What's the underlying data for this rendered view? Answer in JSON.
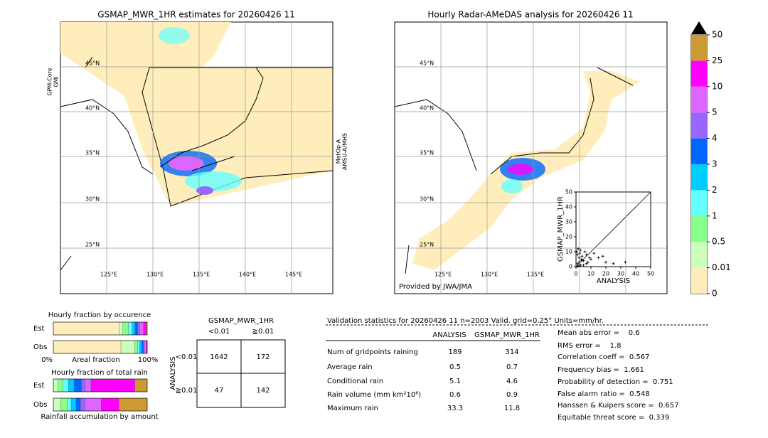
{
  "left_map": {
    "title": "GSMAP_MWR_1HR estimates for 20260426 11",
    "sensor_left": [
      "GPM-Core",
      "GMI"
    ],
    "sensor_right": [
      "MetOp-A",
      "AMSU-A/MHS"
    ],
    "lat_labels": [
      "45°N",
      "40°N",
      "35°N",
      "30°N",
      "25°N"
    ],
    "lon_labels": [
      "125°E",
      "130°E",
      "135°E",
      "140°E",
      "145°E"
    ]
  },
  "right_map": {
    "title": "Hourly Radar-AMeDAS analysis for 20260426 11",
    "lat_labels": [
      "45°N",
      "40°N",
      "35°N",
      "30°N",
      "25°N"
    ],
    "lon_labels": [
      "125°E",
      "130°E",
      "135°E"
    ],
    "credit": "Provided by JWA/JMA"
  },
  "colorbar": {
    "ticks": [
      0,
      0.01,
      0.5,
      1,
      2,
      3,
      4,
      5,
      10,
      25,
      50
    ],
    "colors": [
      "#ffeebb",
      "#ccffbb",
      "#88ff88",
      "#66ffff",
      "#00ccff",
      "#0066ff",
      "#9966ff",
      "#dd66ff",
      "#ff00ff",
      "#cc9933"
    ],
    "extend_color": "#000000"
  },
  "scatter": {
    "type": "scatter",
    "xlabel": "ANALYSIS",
    "ylabel": "GSMAP_MWR_1HR",
    "xlim": [
      0,
      50
    ],
    "ylim": [
      0,
      50
    ],
    "xticks": [
      0,
      10,
      20,
      30,
      40,
      50
    ],
    "yticks": [
      0,
      10,
      20,
      30,
      40,
      50
    ],
    "x": [
      0.5,
      1,
      1.5,
      2,
      2.5,
      3,
      3.5,
      4,
      5,
      6,
      7,
      8,
      9,
      10,
      1,
      2,
      3,
      4,
      12,
      15,
      18,
      20,
      25,
      33,
      2,
      5,
      7,
      1
    ],
    "y": [
      10,
      8,
      12,
      6,
      9,
      11,
      5,
      7,
      4,
      10,
      8,
      3,
      6,
      5,
      2,
      3,
      1,
      4,
      9,
      6,
      7,
      3,
      2,
      3,
      0.5,
      1,
      2,
      0.3
    ]
  },
  "occurrence": {
    "title": "Hourly fraction by occurence",
    "rows": [
      {
        "label": "Est",
        "values": [
          70,
          4,
          6,
          4,
          3,
          3,
          2,
          4,
          3,
          1
        ]
      },
      {
        "label": "Obs",
        "values": [
          72,
          15,
          3,
          2,
          2,
          2,
          1,
          2,
          1,
          0
        ]
      }
    ],
    "xlabels": [
      "0%",
      "Areal fraction",
      "100%"
    ]
  },
  "total": {
    "title": "Hourly fraction of total rain",
    "rows": [
      {
        "label": "Est",
        "values": [
          0,
          5,
          5,
          6,
          6,
          8,
          4,
          6,
          47,
          13
        ]
      },
      {
        "label": "Obs",
        "values": [
          0,
          8,
          7,
          4,
          5,
          5,
          5,
          17,
          19,
          30
        ]
      }
    ],
    "footer": "Rainfall accumulation by amount"
  },
  "contingency": {
    "title": "GSMAP_MWR_1HR",
    "columns": [
      "<0.01",
      "≧0.01"
    ],
    "side_label": "ANALYSIS",
    "rows": [
      {
        "label": "<0.01",
        "cells": [
          1642,
          172
        ]
      },
      {
        "label": "≧0.01",
        "cells": [
          47,
          142
        ]
      }
    ]
  },
  "validation": {
    "header": "Validation statistics for 20260426 11  n=2003 Valid. grid=0.25° Units=mm/hr.",
    "columns": [
      "ANALYSIS",
      "GSMAP_MWR_1HR"
    ],
    "rows": [
      {
        "label": "Num of gridpoints raining",
        "values": [
          189,
          314
        ]
      },
      {
        "label": "Average rain",
        "values": [
          0.5,
          0.7
        ]
      },
      {
        "label": "Conditional rain",
        "values": [
          5.1,
          4.6
        ]
      },
      {
        "label": "Rain volume (mm km²10⁶)",
        "values": [
          0.6,
          0.9
        ]
      },
      {
        "label": "Maximum rain",
        "values": [
          33.3,
          11.8
        ]
      }
    ]
  },
  "scores": [
    "Mean abs error =    0.6",
    "RMS error =    1.8",
    "Correlation coeff =  0.567",
    "Frequency bias =  1.661",
    "Probability of detection =  0.751",
    "False alarm ratio =  0.548",
    "Hanssen & Kuipers score =  0.657",
    "Equitable threat score =  0.339"
  ]
}
